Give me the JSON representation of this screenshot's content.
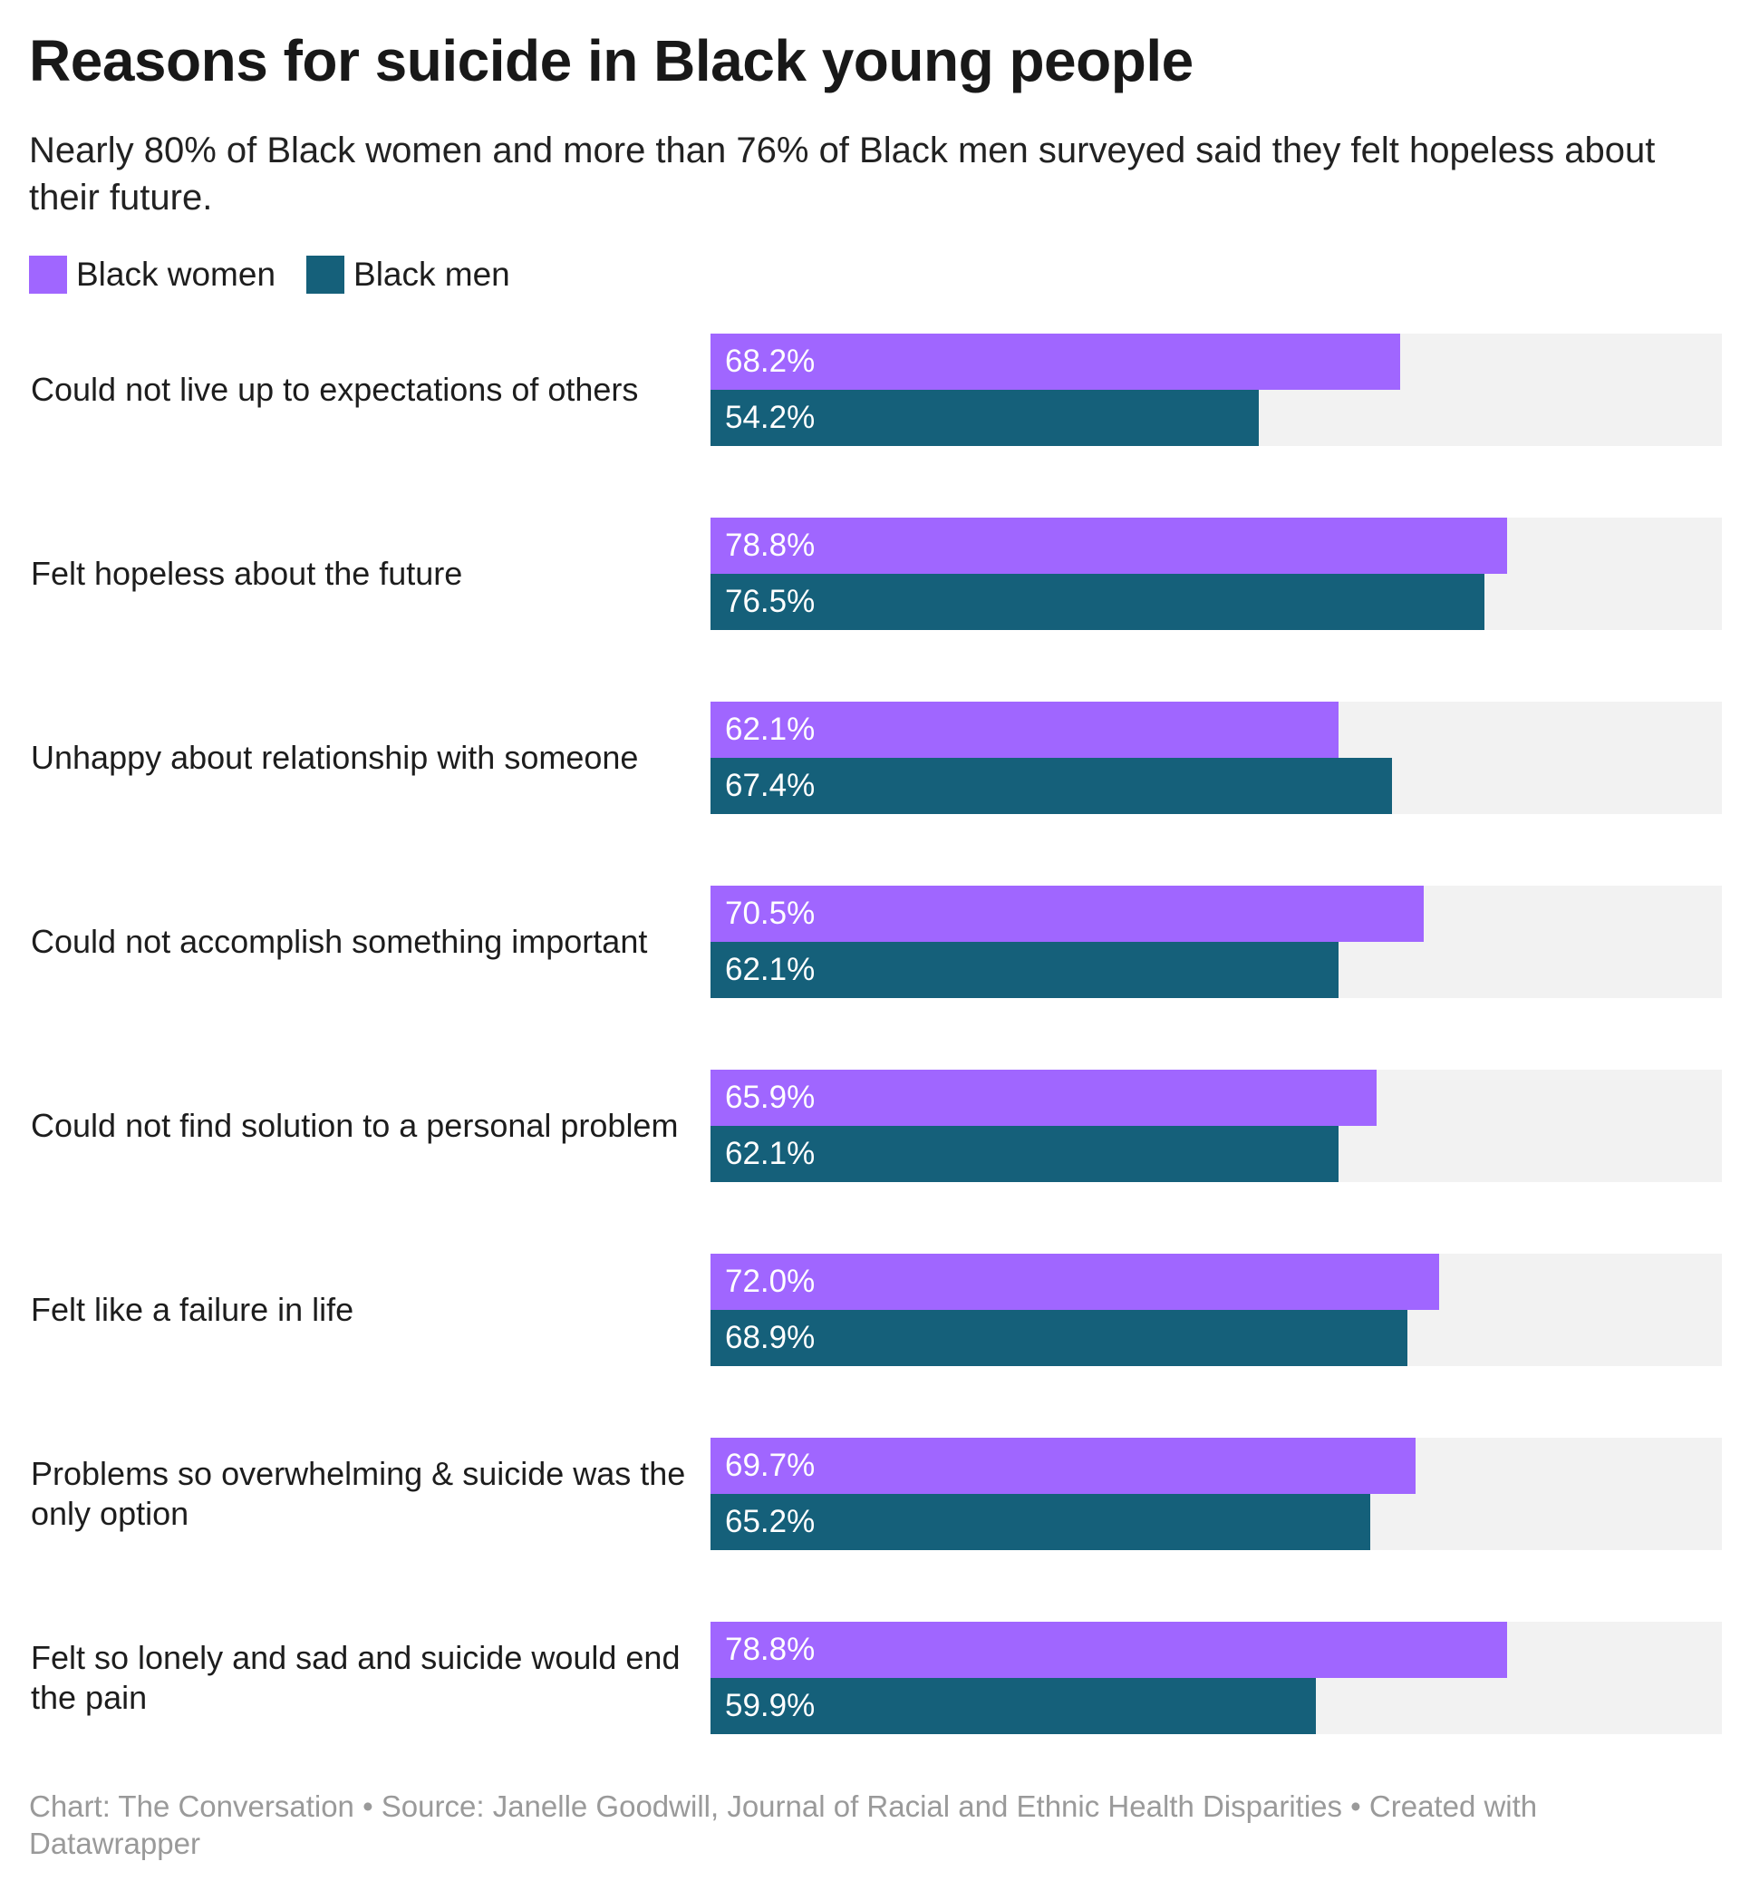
{
  "chart_data": {
    "type": "bar",
    "orientation": "horizontal",
    "title": "Reasons for suicide in Black young people",
    "subtitle": "Nearly 80% of Black women and more than 76% of Black men surveyed said they felt hopeless about their future.",
    "xlim": [
      0,
      100
    ],
    "unit": "%",
    "grid": false,
    "legend_placement": "top-left",
    "categories": [
      "Could not live up to expectations of others",
      "Felt hopeless about the future",
      "Unhappy about relationship with someone",
      "Could not accomplish something important",
      "Could not find solution to a personal problem",
      "Felt like a failure in life",
      "Problems so overwhelming & suicide was the only option",
      "Felt so lonely and sad and suicide would end the pain"
    ],
    "series": [
      {
        "name": "Black women",
        "color": "#a066ff",
        "values": [
          68.2,
          78.8,
          62.1,
          70.5,
          65.9,
          72.0,
          69.7,
          78.8
        ],
        "labels": [
          "68.2%",
          "78.8%",
          "62.1%",
          "70.5%",
          "65.9%",
          "72.0%",
          "69.7%",
          "78.8%"
        ]
      },
      {
        "name": "Black men",
        "color": "#15607a",
        "values": [
          54.2,
          76.5,
          67.4,
          62.1,
          62.1,
          68.9,
          65.2,
          59.9
        ],
        "labels": [
          "54.2%",
          "76.5%",
          "67.4%",
          "62.1%",
          "62.1%",
          "68.9%",
          "65.2%",
          "59.9%"
        ]
      }
    ],
    "track_color": "#f2f2f2",
    "footer": "Chart: The Conversation • Source: Janelle Goodwill, Journal of Racial and Ethnic Health Disparities • Created with Datawrapper"
  }
}
